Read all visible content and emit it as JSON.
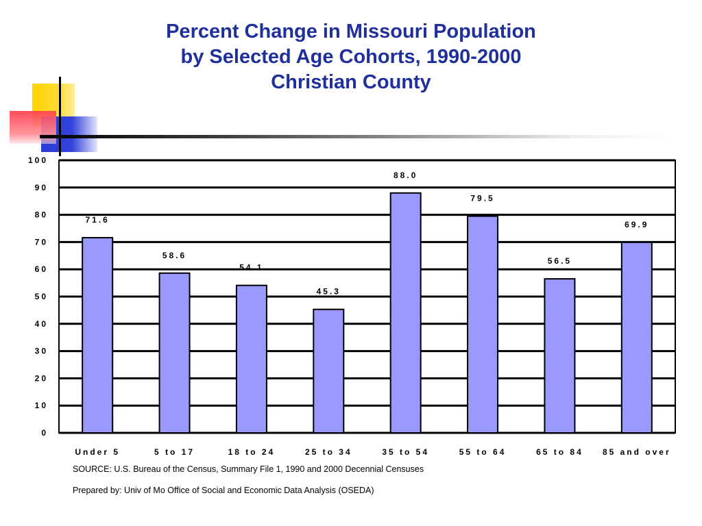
{
  "chart_data": {
    "type": "bar",
    "title": "Percent Change in Missouri Population",
    "subtitle": "by Selected Age Cohorts, 1990-2000",
    "subtitle2": "Christian County",
    "categories": [
      "Under 5",
      "5 to 17",
      "18 to 24",
      "25 to 34",
      "35 to 54",
      "55 to 64",
      "65 to 84",
      "85 and over"
    ],
    "values": [
      71.6,
      58.6,
      54.1,
      45.3,
      88.0,
      79.5,
      56.5,
      69.9
    ],
    "data_labels": [
      "71.6",
      "58.6",
      "54.1",
      "45.3",
      "88.0",
      "79.5",
      "56.5",
      "69.9"
    ],
    "yticks": [
      0,
      10,
      20,
      30,
      40,
      50,
      60,
      70,
      80,
      90,
      100
    ],
    "ylim": [
      0,
      100
    ],
    "xlabel": "",
    "ylabel": "",
    "grid": true,
    "bar_color": "#9999ff",
    "title_color": "#1f2f9c"
  },
  "notes": {
    "source": "SOURCE: U.S. Bureau of the Census, Summary File 1, 1990 and 2000 Decennial Censuses",
    "prepared": "Prepared by: Univ of Mo Office of Social and Economic Data Analysis (OSEDA)"
  }
}
